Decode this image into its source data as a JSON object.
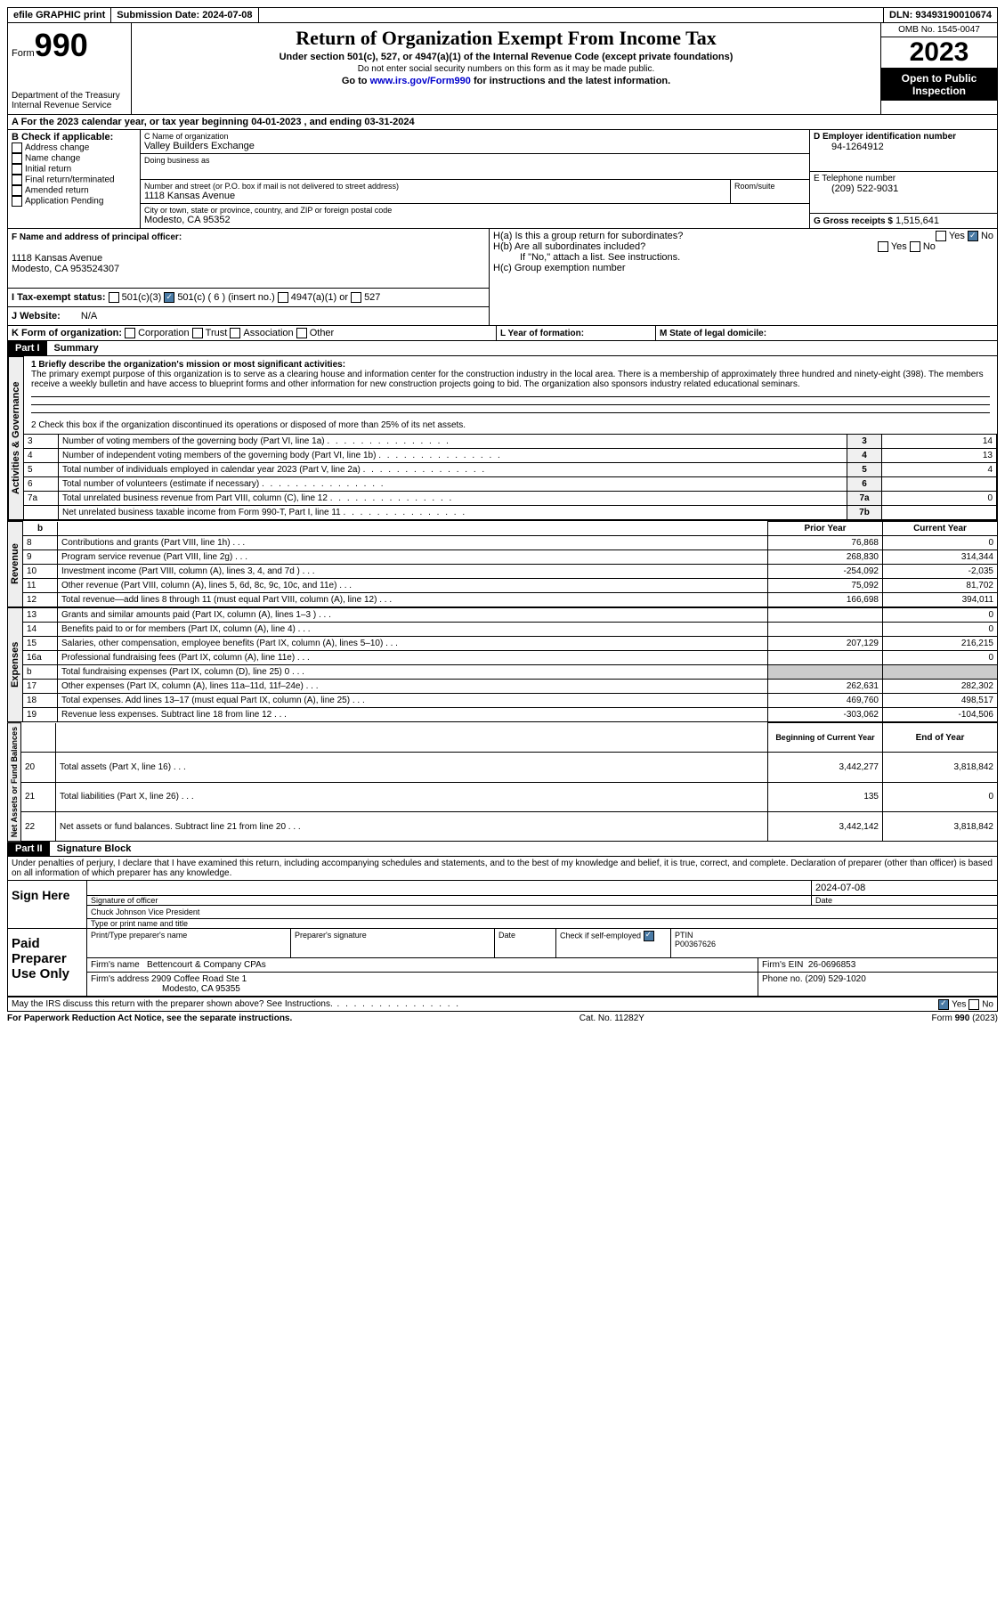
{
  "topbar": {
    "efile": "efile GRAPHIC print",
    "submission_label": "Submission Date:",
    "submission_date": "2024-07-08",
    "dln_label": "DLN:",
    "dln": "93493190010674"
  },
  "header": {
    "form_label": "Form",
    "form_number": "990",
    "dept": "Department of the Treasury Internal Revenue Service",
    "title": "Return of Organization Exempt From Income Tax",
    "subtitle1": "Under section 501(c), 527, or 4947(a)(1) of the Internal Revenue Code (except private foundations)",
    "subtitle2": "Do not enter social security numbers on this form as it may be made public.",
    "subtitle3_pre": "Go to ",
    "subtitle3_link": "www.irs.gov/Form990",
    "subtitle3_post": " for instructions and the latest information.",
    "omb": "OMB No. 1545-0047",
    "year": "2023",
    "inspection": "Open to Public Inspection"
  },
  "line_a": {
    "text": "A For the 2023 calendar year, or tax year beginning ",
    "begin": "04-01-2023",
    "mid": " , and ending ",
    "end": "03-31-2024"
  },
  "box_b": {
    "title": "B Check if applicable:",
    "items": [
      "Address change",
      "Name change",
      "Initial return",
      "Final return/terminated",
      "Amended return",
      "Application Pending"
    ]
  },
  "box_c": {
    "label": "C Name of organization",
    "name": "Valley Builders Exchange",
    "dba_label": "Doing business as",
    "street_label": "Number and street (or P.O. box if mail is not delivered to street address)",
    "suite_label": "Room/suite",
    "street": "1118 Kansas Avenue",
    "city_label": "City or town, state or province, country, and ZIP or foreign postal code",
    "city": "Modesto, CA  95352"
  },
  "box_d": {
    "label": "D Employer identification number",
    "value": "94-1264912"
  },
  "box_e": {
    "label": "E Telephone number",
    "value": "(209) 522-9031"
  },
  "box_g": {
    "label": "G Gross receipts $",
    "value": "1,515,641"
  },
  "box_f": {
    "label": "F Name and address of principal officer:",
    "addr1": "1118 Kansas Avenue",
    "addr2": "Modesto, CA  953524307"
  },
  "box_h": {
    "ha": "H(a) Is this a group return for subordinates?",
    "hb": "H(b) Are all subordinates included?",
    "hb_note": "If \"No,\" attach a list. See instructions.",
    "hc": "H(c) Group exemption number",
    "yes": "Yes",
    "no": "No"
  },
  "box_i": {
    "label": "I   Tax-exempt status:",
    "o1": "501(c)(3)",
    "o2": "501(c) ( 6 ) (insert no.)",
    "o3": "4947(a)(1) or",
    "o4": "527"
  },
  "box_j": {
    "label": "J   Website:",
    "value": "N/A"
  },
  "box_k": {
    "label": "K Form of organization:",
    "o1": "Corporation",
    "o2": "Trust",
    "o3": "Association",
    "o4": "Other"
  },
  "box_l": {
    "label": "L Year of formation:"
  },
  "box_m": {
    "label": "M State of legal domicile:"
  },
  "part1": {
    "label": "Part I",
    "title": "Summary",
    "line1_label": "1  Briefly describe the organization's mission or most significant activities:",
    "mission": "The primary exempt purpose of this organization is to serve as a clearing house and information center for the construction industry in the local area. There is a membership of approximately three hundred and ninety-eight (398). The members receive a weekly bulletin and have access to blueprint forms and other information for new construction projects going to bid. The organization also sponsors industry related educational seminars.",
    "line2": "2   Check this box      if the organization discontinued its operations or disposed of more than 25% of its net assets.",
    "sections": {
      "activities": "Activities & Governance",
      "revenue": "Revenue",
      "expenses": "Expenses",
      "netassets": "Net Assets or Fund Balances"
    },
    "col_prior": "Prior Year",
    "col_current": "Current Year",
    "col_begin": "Beginning of Current Year",
    "col_end": "End of Year",
    "rows_gov": [
      {
        "n": "3",
        "d": "Number of voting members of the governing body (Part VI, line 1a)",
        "b": "3",
        "v": "14"
      },
      {
        "n": "4",
        "d": "Number of independent voting members of the governing body (Part VI, line 1b)",
        "b": "4",
        "v": "13"
      },
      {
        "n": "5",
        "d": "Total number of individuals employed in calendar year 2023 (Part V, line 2a)",
        "b": "5",
        "v": "4"
      },
      {
        "n": "6",
        "d": "Total number of volunteers (estimate if necessary)",
        "b": "6",
        "v": ""
      },
      {
        "n": "7a",
        "d": "Total unrelated business revenue from Part VIII, column (C), line 12",
        "b": "7a",
        "v": "0"
      },
      {
        "n": "",
        "d": "Net unrelated business taxable income from Form 990-T, Part I, line 11",
        "b": "7b",
        "v": ""
      }
    ],
    "rows_rev": [
      {
        "n": "8",
        "d": "Contributions and grants (Part VIII, line 1h)",
        "p": "76,868",
        "c": "0"
      },
      {
        "n": "9",
        "d": "Program service revenue (Part VIII, line 2g)",
        "p": "268,830",
        "c": "314,344"
      },
      {
        "n": "10",
        "d": "Investment income (Part VIII, column (A), lines 3, 4, and 7d )",
        "p": "-254,092",
        "c": "-2,035"
      },
      {
        "n": "11",
        "d": "Other revenue (Part VIII, column (A), lines 5, 6d, 8c, 9c, 10c, and 11e)",
        "p": "75,092",
        "c": "81,702"
      },
      {
        "n": "12",
        "d": "Total revenue—add lines 8 through 11 (must equal Part VIII, column (A), line 12)",
        "p": "166,698",
        "c": "394,011"
      }
    ],
    "rows_exp": [
      {
        "n": "13",
        "d": "Grants and similar amounts paid (Part IX, column (A), lines 1–3 )",
        "p": "",
        "c": "0"
      },
      {
        "n": "14",
        "d": "Benefits paid to or for members (Part IX, column (A), line 4)",
        "p": "",
        "c": "0"
      },
      {
        "n": "15",
        "d": "Salaries, other compensation, employee benefits (Part IX, column (A), lines 5–10)",
        "p": "207,129",
        "c": "216,215"
      },
      {
        "n": "16a",
        "d": "Professional fundraising fees (Part IX, column (A), line 11e)",
        "p": "",
        "c": "0"
      },
      {
        "n": "b",
        "d": "Total fundraising expenses (Part IX, column (D), line 25) 0",
        "p": "GRAY",
        "c": "GRAY"
      },
      {
        "n": "17",
        "d": "Other expenses (Part IX, column (A), lines 11a–11d, 11f–24e)",
        "p": "262,631",
        "c": "282,302"
      },
      {
        "n": "18",
        "d": "Total expenses. Add lines 13–17 (must equal Part IX, column (A), line 25)",
        "p": "469,760",
        "c": "498,517"
      },
      {
        "n": "19",
        "d": "Revenue less expenses. Subtract line 18 from line 12",
        "p": "-303,062",
        "c": "-104,506"
      }
    ],
    "rows_net": [
      {
        "n": "20",
        "d": "Total assets (Part X, line 16)",
        "p": "3,442,277",
        "c": "3,818,842"
      },
      {
        "n": "21",
        "d": "Total liabilities (Part X, line 26)",
        "p": "135",
        "c": "0"
      },
      {
        "n": "22",
        "d": "Net assets or fund balances. Subtract line 21 from line 20",
        "p": "3,442,142",
        "c": "3,818,842"
      }
    ],
    "b_label": "b"
  },
  "part2": {
    "label": "Part II",
    "title": "Signature Block",
    "penalty": "Under penalties of perjury, I declare that I have examined this return, including accompanying schedules and statements, and to the best of my knowledge and belief, it is true, correct, and complete. Declaration of preparer (other than officer) is based on all information of which preparer has any knowledge.",
    "sign_here": "Sign Here",
    "sig_officer": "Signature of officer",
    "sig_date": "2024-07-08",
    "date_label": "Date",
    "officer_name": "Chuck Johnson  Vice President",
    "type_name": "Type or print name and title",
    "paid": "Paid Preparer Use Only",
    "prep_name_label": "Print/Type preparer's name",
    "prep_sig_label": "Preparer's signature",
    "check_self": "Check       if self-employed",
    "ptin_label": "PTIN",
    "ptin": "P00367626",
    "firm_name_label": "Firm's name",
    "firm_name": "Bettencourt & Company CPAs",
    "firm_ein_label": "Firm's EIN",
    "firm_ein": "26-0696853",
    "firm_addr_label": "Firm's address",
    "firm_addr": "2909 Coffee Road Ste 1",
    "firm_city": "Modesto, CA  95355",
    "phone_label": "Phone no.",
    "phone": "(209) 529-1020",
    "discuss": "May the IRS discuss this return with the preparer shown above? See Instructions.",
    "yes": "Yes",
    "no": "No"
  },
  "footer": {
    "paperwork": "For Paperwork Reduction Act Notice, see the separate instructions.",
    "cat": "Cat. No. 11282Y",
    "form": "Form 990 (2023)"
  }
}
